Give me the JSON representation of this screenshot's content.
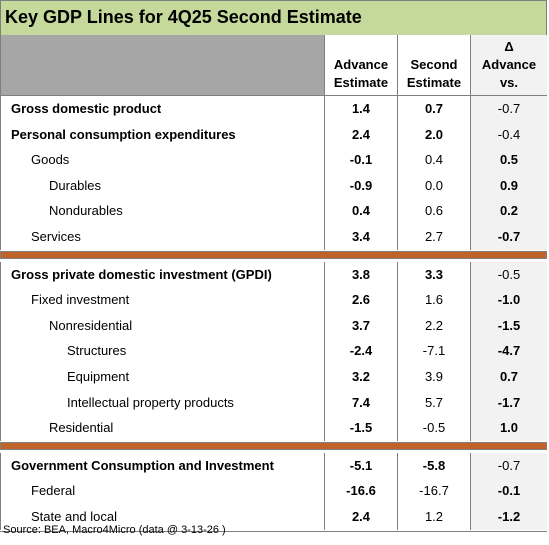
{
  "title": "Key GDP Lines for 4Q25 Second Estimate",
  "columns": {
    "advance": [
      "Advance",
      "Estimate"
    ],
    "second": [
      "Second",
      "Estimate"
    ],
    "delta": [
      "Δ",
      "Advance",
      "vs."
    ]
  },
  "sections": [
    {
      "rows": [
        {
          "label": "Gross domestic product",
          "indent": 0,
          "bold_label": true,
          "advance": "1.4",
          "second": "0.7",
          "delta": "-0.7",
          "advance_bold": true,
          "second_bold": true,
          "delta_bold": false
        },
        {
          "label": "Personal consumption expenditures",
          "indent": 0,
          "bold_label": true,
          "advance": "2.4",
          "second": "2.0",
          "delta": "-0.4",
          "advance_bold": true,
          "second_bold": true,
          "delta_bold": false
        },
        {
          "label": "Goods",
          "indent": 1,
          "bold_label": false,
          "advance": "-0.1",
          "second": "0.4",
          "delta": "0.5",
          "advance_bold": true,
          "second_bold": false,
          "delta_bold": true
        },
        {
          "label": "Durables",
          "indent": 2,
          "bold_label": false,
          "advance": "-0.9",
          "second": "0.0",
          "delta": "0.9",
          "advance_bold": true,
          "second_bold": false,
          "delta_bold": true
        },
        {
          "label": "Nondurables",
          "indent": 2,
          "bold_label": false,
          "advance": "0.4",
          "second": "0.6",
          "delta": "0.2",
          "advance_bold": true,
          "second_bold": false,
          "delta_bold": true
        },
        {
          "label": "Services",
          "indent": 1,
          "bold_label": false,
          "advance": "3.4",
          "second": "2.7",
          "delta": "-0.7",
          "advance_bold": true,
          "second_bold": false,
          "delta_bold": true
        }
      ]
    },
    {
      "rows": [
        {
          "label": "Gross private domestic investment (GPDI)",
          "indent": 0,
          "bold_label": true,
          "advance": "3.8",
          "second": "3.3",
          "delta": "-0.5",
          "advance_bold": true,
          "second_bold": true,
          "delta_bold": false
        },
        {
          "label": "Fixed investment",
          "indent": 1,
          "bold_label": false,
          "advance": "2.6",
          "second": "1.6",
          "delta": "-1.0",
          "advance_bold": true,
          "second_bold": false,
          "delta_bold": true
        },
        {
          "label": "Nonresidential",
          "indent": 2,
          "bold_label": false,
          "advance": "3.7",
          "second": "2.2",
          "delta": "-1.5",
          "advance_bold": true,
          "second_bold": false,
          "delta_bold": true
        },
        {
          "label": "Structures",
          "indent": 3,
          "bold_label": false,
          "advance": "-2.4",
          "second": "-7.1",
          "delta": "-4.7",
          "advance_bold": true,
          "second_bold": false,
          "delta_bold": true
        },
        {
          "label": "Equipment",
          "indent": 3,
          "bold_label": false,
          "advance": "3.2",
          "second": "3.9",
          "delta": "0.7",
          "advance_bold": true,
          "second_bold": false,
          "delta_bold": true
        },
        {
          "label": "Intellectual property products",
          "indent": 3,
          "bold_label": false,
          "advance": "7.4",
          "second": "5.7",
          "delta": "-1.7",
          "advance_bold": true,
          "second_bold": false,
          "delta_bold": true
        },
        {
          "label": "Residential",
          "indent": 2,
          "bold_label": false,
          "advance": "-1.5",
          "second": "-0.5",
          "delta": "1.0",
          "advance_bold": true,
          "second_bold": false,
          "delta_bold": true
        }
      ]
    },
    {
      "rows": [
        {
          "label": "Government Consumption and Investment",
          "indent": 0,
          "bold_label": true,
          "advance": "-5.1",
          "second": "-5.8",
          "delta": "-0.7",
          "advance_bold": true,
          "second_bold": true,
          "delta_bold": false
        },
        {
          "label": "Federal",
          "indent": 1,
          "bold_label": false,
          "advance": "-16.6",
          "second": "-16.7",
          "delta": "-0.1",
          "advance_bold": true,
          "second_bold": false,
          "delta_bold": true
        },
        {
          "label": "State and local",
          "indent": 1,
          "bold_label": false,
          "advance": "2.4",
          "second": "1.2",
          "delta": "-1.2",
          "advance_bold": true,
          "second_bold": false,
          "delta_bold": true
        }
      ]
    }
  ],
  "source": "Source: BEA, Macro4Micro (data @ 3-13-26 )",
  "colors": {
    "title_bg": "#c4d99b",
    "header_gray": "#a6a6a6",
    "separator": "#c0632a",
    "delta_bg": "#f2f2f2"
  }
}
